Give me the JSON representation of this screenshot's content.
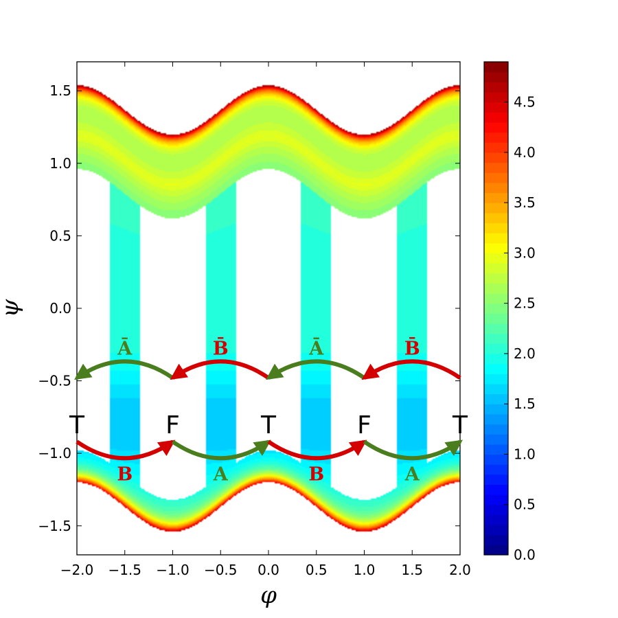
{
  "chart_data": {
    "type": "contour",
    "xlabel": "φ",
    "ylabel": "ψ",
    "xlim": [
      -2.0,
      2.0
    ],
    "ylim": [
      -1.7,
      1.7
    ],
    "x_ticks": [
      -2.0,
      -1.5,
      -1.0,
      -0.5,
      0.0,
      0.5,
      1.0,
      1.5,
      2.0
    ],
    "x_tick_labels": [
      "−2.0",
      "−1.5",
      "−1.0",
      "−0.5",
      "0.0",
      "0.5",
      "1.0",
      "1.5",
      "2.0"
    ],
    "y_ticks": [
      1.5,
      1.0,
      0.5,
      0.0,
      -0.5,
      -1.0,
      -1.5
    ],
    "y_tick_labels": [
      "1.5",
      "1.0",
      "0.5",
      "0.0",
      "−0.5",
      "−1.0",
      "−1.5"
    ],
    "colorbar": {
      "colormap": "jet",
      "range": [
        0.0,
        4.9
      ],
      "ticks": [
        0.0,
        0.5,
        1.0,
        1.5,
        2.0,
        2.5,
        3.0,
        3.5,
        4.0,
        4.5
      ],
      "tick_labels": [
        "0.0",
        "0.5",
        "1.0",
        "1.5",
        "2.0",
        "2.5",
        "3.0",
        "3.5",
        "4.0",
        "4.5"
      ]
    },
    "sites": [
      {
        "label": "T",
        "phi": -2.0,
        "psi": -0.8
      },
      {
        "label": "F",
        "phi": -1.0,
        "psi": -0.8
      },
      {
        "label": "T",
        "phi": 0.0,
        "psi": -0.8
      },
      {
        "label": "F",
        "phi": 1.0,
        "psi": -0.8
      },
      {
        "label": "T",
        "phi": 2.0,
        "psi": -0.8
      }
    ],
    "transitions": [
      {
        "label": "Ā",
        "from_phi": -1.0,
        "to_phi": -2.0,
        "psi": -0.48,
        "color": "#4a7d1e",
        "row": "upper"
      },
      {
        "label": "B̄",
        "from_phi": 0.0,
        "to_phi": -1.0,
        "psi": -0.48,
        "color": "#d40000",
        "row": "upper"
      },
      {
        "label": "Ā",
        "from_phi": 1.0,
        "to_phi": 0.0,
        "psi": -0.48,
        "color": "#4a7d1e",
        "row": "upper"
      },
      {
        "label": "B̄",
        "from_phi": 2.0,
        "to_phi": 1.0,
        "psi": -0.48,
        "color": "#d40000",
        "row": "upper"
      },
      {
        "label": "B",
        "from_phi": -2.0,
        "to_phi": -1.0,
        "psi": -0.92,
        "color": "#d40000",
        "row": "lower"
      },
      {
        "label": "A",
        "from_phi": -1.0,
        "to_phi": 0.0,
        "psi": -0.92,
        "color": "#4a7d1e",
        "row": "lower"
      },
      {
        "label": "B",
        "from_phi": 0.0,
        "to_phi": 1.0,
        "psi": -0.92,
        "color": "#d40000",
        "row": "lower"
      },
      {
        "label": "A",
        "from_phi": 1.0,
        "to_phi": 2.0,
        "psi": -0.92,
        "color": "#4a7d1e",
        "row": "lower"
      }
    ]
  }
}
